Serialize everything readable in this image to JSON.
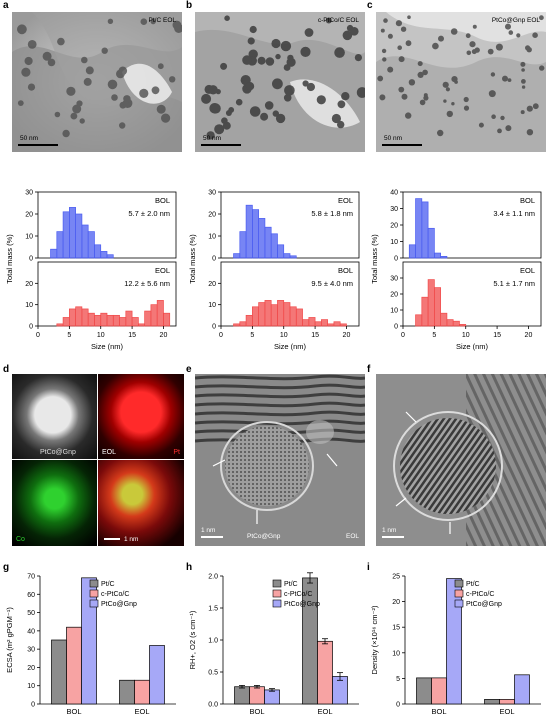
{
  "panel_labels": [
    "a",
    "b",
    "c",
    "d",
    "e",
    "f",
    "g",
    "h",
    "i"
  ],
  "tem_top": [
    {
      "label": "Pt/C EOL",
      "scale": "50 nm"
    },
    {
      "label": "c-PtCo/C EOL",
      "scale": "50 nm"
    },
    {
      "label": "PtCo@Gnp EOL",
      "scale": "50 nm"
    }
  ],
  "hist_common": {
    "xlabel": "Size (nm)",
    "ylabel": "Total mass (%)",
    "xticks": [
      0,
      5,
      10,
      15,
      20
    ]
  },
  "chart_data": [
    {
      "type": "bar",
      "panel": "a-top",
      "label": "BOL",
      "stat": "5.7 ± 2.0 nm",
      "color": "#4a5cf0",
      "ylim": [
        0,
        30
      ],
      "yticks": [
        0,
        10,
        20,
        30
      ],
      "x": [
        2.5,
        3.5,
        4.5,
        5.5,
        6.5,
        7.5,
        8.5,
        9.5,
        10.5,
        11.5
      ],
      "values": [
        4,
        12,
        21,
        23,
        20,
        15,
        12,
        6,
        3,
        1.5
      ]
    },
    {
      "type": "bar",
      "panel": "a-bottom",
      "label": "EOL",
      "stat": "12.2 ± 5.6 nm",
      "color": "#f04a4a",
      "ylim": [
        0,
        30
      ],
      "yticks": [
        0,
        10,
        20
      ],
      "x": [
        3.5,
        4.5,
        5.5,
        6.5,
        7.5,
        8.5,
        9.5,
        10.5,
        11.5,
        12.5,
        13.5,
        14.5,
        15.5,
        16.5,
        17.5,
        18.5,
        19.5,
        20.5
      ],
      "values": [
        1,
        4,
        8,
        9,
        8,
        6,
        5,
        6,
        5,
        5,
        4,
        7,
        4,
        1,
        7,
        10,
        12,
        6
      ]
    },
    {
      "type": "bar",
      "panel": "b-top",
      "label": "EOL",
      "stat": "5.8 ± 1.8 nm",
      "color": "#4a5cf0",
      "ylim": [
        0,
        30
      ],
      "yticks": [
        0,
        10,
        20,
        30
      ],
      "x": [
        2.5,
        3.5,
        4.5,
        5.5,
        6.5,
        7.5,
        8.5,
        9.5,
        10.5,
        11.5
      ],
      "values": [
        2,
        12,
        24,
        22,
        18,
        14,
        11,
        6,
        2,
        1
      ]
    },
    {
      "type": "bar",
      "panel": "b-bottom",
      "label": "BOL",
      "stat": "9.5 ± 4.0 nm",
      "color": "#f04a4a",
      "ylim": [
        0,
        30
      ],
      "yticks": [
        0,
        10,
        20
      ],
      "x": [
        2.5,
        3.5,
        4.5,
        5.5,
        6.5,
        7.5,
        8.5,
        9.5,
        10.5,
        11.5,
        12.5,
        13.5,
        14.5,
        15.5,
        16.5,
        17.5,
        18.5,
        19.5
      ],
      "values": [
        1,
        2,
        5,
        9,
        11,
        12,
        10,
        12,
        11,
        9,
        8,
        3,
        4,
        2,
        3,
        1,
        2,
        1
      ]
    },
    {
      "type": "bar",
      "panel": "c-top",
      "label": "BOL",
      "stat": "3.4 ± 1.1 nm",
      "color": "#4a5cf0",
      "ylim": [
        0,
        40
      ],
      "yticks": [
        0,
        10,
        20,
        30,
        40
      ],
      "x": [
        1.5,
        2.5,
        3.5,
        4.5,
        5.5,
        6.5
      ],
      "values": [
        8,
        36,
        34,
        18,
        3,
        1
      ]
    },
    {
      "type": "bar",
      "panel": "c-bottom",
      "label": "EOL",
      "stat": "5.1 ± 1.7 nm",
      "color": "#f04a4a",
      "ylim": [
        0,
        40
      ],
      "yticks": [
        0,
        10,
        20,
        30
      ],
      "x": [
        2.5,
        3.5,
        4.5,
        5.5,
        6.5,
        7.5,
        8.5,
        9.5
      ],
      "values": [
        7,
        18,
        29,
        24,
        8,
        4,
        3,
        1
      ]
    },
    {
      "type": "bar",
      "panel": "g",
      "ylabel": "ECSA (m² gPGM⁻¹)",
      "categories": [
        "BOL",
        "EOL"
      ],
      "ylim": [
        0,
        70
      ],
      "yticks": [
        0,
        10,
        20,
        30,
        40,
        50,
        60,
        70
      ],
      "series": [
        {
          "name": "Pt/C",
          "color": "#8c8c8c",
          "values": [
            35,
            13
          ]
        },
        {
          "name": "c-PtCo/C",
          "color": "#f7a3a3",
          "values": [
            42,
            13
          ]
        },
        {
          "name": "PtCo@Gnp",
          "color": "#a6a8f7",
          "values": [
            69,
            32
          ]
        }
      ]
    },
    {
      "type": "bar",
      "panel": "h",
      "ylabel": "RH+, O2 (s cm⁻¹)",
      "categories": [
        "BOL",
        "EOL"
      ],
      "ylim": [
        0,
        2.0
      ],
      "yticks": [
        0.0,
        0.5,
        1.0,
        1.5,
        2.0
      ],
      "series": [
        {
          "name": "Pt/C",
          "color": "#8c8c8c",
          "values": [
            0.27,
            1.97
          ],
          "err": [
            0.02,
            0.08
          ]
        },
        {
          "name": "c-PtCo/C",
          "color": "#f7a3a3",
          "values": [
            0.27,
            0.98
          ],
          "err": [
            0.02,
            0.04
          ]
        },
        {
          "name": "PtCo@Gnp",
          "color": "#a6a8f7",
          "values": [
            0.22,
            0.43
          ],
          "err": [
            0.02,
            0.06
          ]
        }
      ]
    },
    {
      "type": "bar",
      "panel": "i",
      "ylabel": "Density (×10¹⁶ cm⁻²)",
      "categories": [
        "BOL",
        "EOL"
      ],
      "ylim": [
        0,
        25
      ],
      "yticks": [
        0,
        5,
        10,
        15,
        20,
        25
      ],
      "series": [
        {
          "name": "Pt/C",
          "color": "#8c8c8c",
          "values": [
            5.1,
            0.9
          ]
        },
        {
          "name": "c-PtCo/C",
          "color": "#f7a3a3",
          "values": [
            5.1,
            0.9
          ]
        },
        {
          "name": "PtCo@Gnp",
          "color": "#a6a8f7",
          "values": [
            24.5,
            5.7
          ]
        }
      ]
    }
  ],
  "panel_d": {
    "haadf": "PtCo@Gnp",
    "eol": "EOL",
    "pt": "Pt",
    "co": "Co",
    "scale": "1 nm"
  },
  "panel_e": {
    "caption": "PtCo@Gnp",
    "eol": "EOL",
    "scale": "1 nm"
  },
  "panel_f": {
    "scale": "1 nm"
  }
}
